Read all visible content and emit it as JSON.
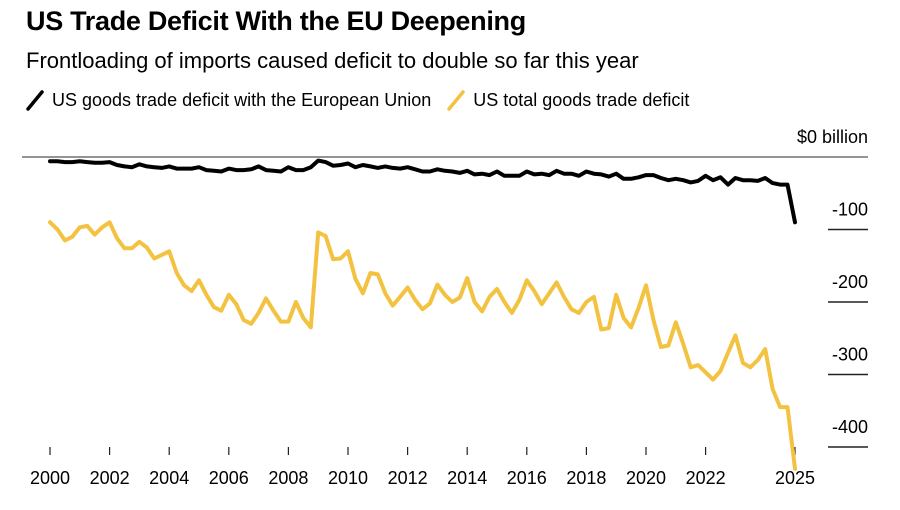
{
  "header": {
    "title": "US Trade Deficit With the EU Deepening",
    "subtitle": "Frontloading of imports caused deficit to double so far this year"
  },
  "legend": [
    {
      "label": "US goods trade deficit with the European Union",
      "color": "#000000",
      "icon": "slash-line-icon"
    },
    {
      "label": "US total goods trade deficit",
      "color": "#f2c240",
      "icon": "slash-line-icon"
    }
  ],
  "chart_data": {
    "type": "line",
    "title": "US Trade Deficit With the EU Deepening",
    "subtitle": "Frontloading of imports caused deficit to double so far this year",
    "xlabel": "",
    "ylabel": "$ billion",
    "xlim": [
      2000,
      2025
    ],
    "ylim": [
      -430,
      0
    ],
    "x_ticks": [
      2000,
      2002,
      2004,
      2006,
      2008,
      2010,
      2012,
      2014,
      2016,
      2018,
      2020,
      2022,
      2025
    ],
    "x_tick_labels": [
      "2000",
      "2002",
      "2004",
      "2006",
      "2008",
      "2010",
      "2012",
      "2014",
      "2016",
      "2018",
      "2020",
      "2022",
      "2025"
    ],
    "y_ticks": [
      0,
      -100,
      -200,
      -300,
      -400
    ],
    "y_tick_labels": [
      "$0 billion",
      "-100",
      "-200",
      "-300",
      "-400"
    ],
    "grid": "y-ticks-right",
    "legend_position": "top-left",
    "frequency": "quarterly",
    "series": [
      {
        "name": "US goods trade deficit with the European Union",
        "color": "#000000",
        "x": [
          2000.0,
          2000.25,
          2000.5,
          2000.75,
          2001.0,
          2001.25,
          2001.5,
          2001.75,
          2002.0,
          2002.25,
          2002.5,
          2002.75,
          2003.0,
          2003.25,
          2003.5,
          2003.75,
          2004.0,
          2004.25,
          2004.5,
          2004.75,
          2005.0,
          2005.25,
          2005.5,
          2005.75,
          2006.0,
          2006.25,
          2006.5,
          2006.75,
          2007.0,
          2007.25,
          2007.5,
          2007.75,
          2008.0,
          2008.25,
          2008.5,
          2008.75,
          2009.0,
          2009.25,
          2009.5,
          2009.75,
          2010.0,
          2010.25,
          2010.5,
          2010.75,
          2011.0,
          2011.25,
          2011.5,
          2011.75,
          2012.0,
          2012.25,
          2012.5,
          2012.75,
          2013.0,
          2013.25,
          2013.5,
          2013.75,
          2014.0,
          2014.25,
          2014.5,
          2014.75,
          2015.0,
          2015.25,
          2015.5,
          2015.75,
          2016.0,
          2016.25,
          2016.5,
          2016.75,
          2017.0,
          2017.25,
          2017.5,
          2017.75,
          2018.0,
          2018.25,
          2018.5,
          2018.75,
          2019.0,
          2019.25,
          2019.5,
          2019.75,
          2020.0,
          2020.25,
          2020.5,
          2020.75,
          2021.0,
          2021.25,
          2021.5,
          2021.75,
          2022.0,
          2022.25,
          2022.5,
          2022.75,
          2023.0,
          2023.25,
          2023.5,
          2023.75,
          2024.0,
          2024.25,
          2024.5,
          2024.75,
          2025.0
        ],
        "values": [
          -6,
          -6,
          -7,
          -7,
          -6,
          -7,
          -8,
          -8,
          -7,
          -11,
          -13,
          -14,
          -10,
          -13,
          -14,
          -15,
          -13,
          -16,
          -16,
          -16,
          -14,
          -18,
          -19,
          -20,
          -16,
          -18,
          -18,
          -17,
          -13,
          -18,
          -19,
          -20,
          -14,
          -18,
          -18,
          -14,
          -5,
          -7,
          -12,
          -11,
          -9,
          -14,
          -11,
          -13,
          -15,
          -13,
          -15,
          -16,
          -14,
          -17,
          -20,
          -20,
          -17,
          -19,
          -20,
          -22,
          -19,
          -24,
          -23,
          -25,
          -20,
          -26,
          -26,
          -26,
          -20,
          -24,
          -23,
          -25,
          -19,
          -23,
          -23,
          -26,
          -20,
          -23,
          -24,
          -27,
          -23,
          -30,
          -30,
          -28,
          -25,
          -25,
          -29,
          -32,
          -30,
          -32,
          -35,
          -33,
          -26,
          -32,
          -28,
          -38,
          -29,
          -32,
          -32,
          -33,
          -29,
          -36,
          -38,
          -38,
          -90
        ]
      },
      {
        "name": "US total goods trade deficit",
        "color": "#f2c240",
        "x": [
          2000.0,
          2000.25,
          2000.5,
          2000.75,
          2001.0,
          2001.25,
          2001.5,
          2001.75,
          2002.0,
          2002.25,
          2002.5,
          2002.75,
          2003.0,
          2003.25,
          2003.5,
          2003.75,
          2004.0,
          2004.25,
          2004.5,
          2004.75,
          2005.0,
          2005.25,
          2005.5,
          2005.75,
          2006.0,
          2006.25,
          2006.5,
          2006.75,
          2007.0,
          2007.25,
          2007.5,
          2007.75,
          2008.0,
          2008.25,
          2008.5,
          2008.75,
          2009.0,
          2009.25,
          2009.5,
          2009.75,
          2010.0,
          2010.25,
          2010.5,
          2010.75,
          2011.0,
          2011.25,
          2011.5,
          2011.75,
          2012.0,
          2012.25,
          2012.5,
          2012.75,
          2013.0,
          2013.25,
          2013.5,
          2013.75,
          2014.0,
          2014.25,
          2014.5,
          2014.75,
          2015.0,
          2015.25,
          2015.5,
          2015.75,
          2016.0,
          2016.25,
          2016.5,
          2016.75,
          2017.0,
          2017.25,
          2017.5,
          2017.75,
          2018.0,
          2018.25,
          2018.5,
          2018.75,
          2019.0,
          2019.25,
          2019.5,
          2019.75,
          2020.0,
          2020.25,
          2020.5,
          2020.75,
          2021.0,
          2021.25,
          2021.5,
          2021.75,
          2022.0,
          2022.25,
          2022.5,
          2022.75,
          2023.0,
          2023.25,
          2023.5,
          2023.75,
          2024.0,
          2024.25,
          2024.5,
          2024.75,
          2025.0
        ],
        "values": [
          -90,
          -100,
          -115,
          -110,
          -97,
          -95,
          -107,
          -97,
          -90,
          -112,
          -126,
          -126,
          -117,
          -125,
          -140,
          -135,
          -130,
          -160,
          -177,
          -185,
          -170,
          -190,
          -207,
          -212,
          -190,
          -203,
          -225,
          -230,
          -215,
          -195,
          -212,
          -227,
          -227,
          -200,
          -222,
          -235,
          -104,
          -109,
          -141,
          -140,
          -130,
          -168,
          -188,
          -160,
          -162,
          -188,
          -205,
          -193,
          -180,
          -197,
          -210,
          -202,
          -176,
          -190,
          -200,
          -194,
          -167,
          -200,
          -213,
          -193,
          -182,
          -200,
          -215,
          -197,
          -170,
          -185,
          -203,
          -188,
          -173,
          -193,
          -210,
          -215,
          -200,
          -193,
          -238,
          -236,
          -190,
          -222,
          -235,
          -208,
          -177,
          -225,
          -262,
          -260,
          -228,
          -258,
          -290,
          -287,
          -297,
          -307,
          -295,
          -270,
          -246,
          -284,
          -290,
          -280,
          -265,
          -320,
          -345,
          -345,
          -430
        ]
      }
    ]
  }
}
